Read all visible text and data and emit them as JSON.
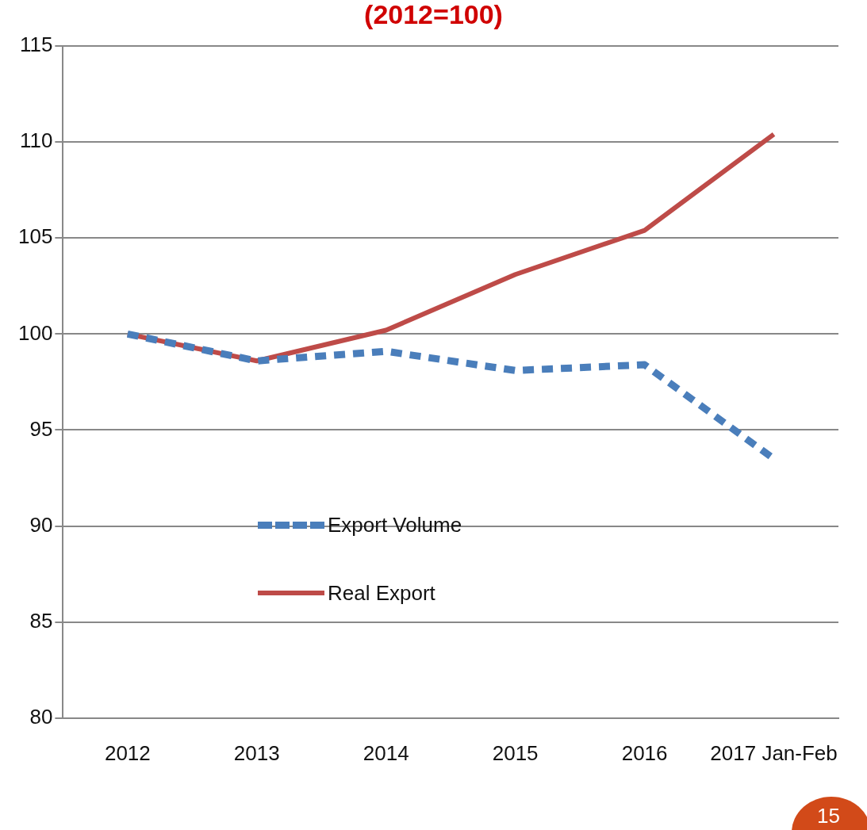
{
  "chart_data": {
    "type": "line",
    "title": "(2012=100)",
    "categories": [
      "2012",
      "2013",
      "2014",
      "2015",
      "2016",
      "2017 Jan-Feb"
    ],
    "series": [
      {
        "name": "Export Volume",
        "color": "#4a7ebb",
        "values": [
          100,
          98.6,
          99.1,
          98.1,
          98.4,
          93.5
        ],
        "line_style": "dashed"
      },
      {
        "name": "Real Export",
        "color": "#be4b48",
        "values": [
          100,
          98.6,
          100.2,
          103.1,
          105.4,
          110.4
        ],
        "line_style": "solid"
      }
    ],
    "ylim": [
      80,
      115
    ],
    "yticks": [
      80,
      85,
      90,
      95,
      100,
      105,
      110,
      115
    ],
    "grid": "y",
    "legend": "center",
    "marker": "none",
    "annotations": [
      "15"
    ]
  }
}
